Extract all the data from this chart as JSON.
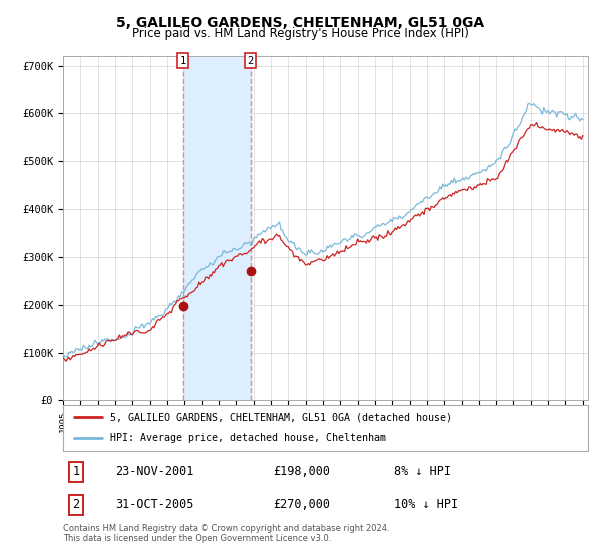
{
  "title": "5, GALILEO GARDENS, CHELTENHAM, GL51 0GA",
  "subtitle": "Price paid vs. HM Land Registry's House Price Index (HPI)",
  "title_fontsize": 10,
  "subtitle_fontsize": 8.5,
  "ylim": [
    0,
    720000
  ],
  "yticks": [
    0,
    100000,
    200000,
    300000,
    400000,
    500000,
    600000,
    700000
  ],
  "ytick_labels": [
    "£0",
    "£100K",
    "£200K",
    "£300K",
    "£400K",
    "£500K",
    "£600K",
    "£700K"
  ],
  "hpi_color": "#7ab8d9",
  "price_color": "#cc2222",
  "marker_color": "#aa1111",
  "vline_color": "#e08080",
  "vspan_color": "#ddeeff",
  "grid_color": "#cccccc",
  "background_color": "#ffffff",
  "purchase1_year": 2001.9,
  "purchase1_price": 198000,
  "purchase2_year": 2005.83,
  "purchase2_price": 270000,
  "legend1": "5, GALILEO GARDENS, CHELTENHAM, GL51 0GA (detached house)",
  "legend2": "HPI: Average price, detached house, Cheltenham",
  "footer": "Contains HM Land Registry data © Crown copyright and database right 2024.\nThis data is licensed under the Open Government Licence v3.0.",
  "table_rows": [
    {
      "num": "1",
      "date": "23-NOV-2001",
      "price": "£198,000",
      "hpi": "8% ↓ HPI"
    },
    {
      "num": "2",
      "date": "31-OCT-2005",
      "price": "£270,000",
      "hpi": "10% ↓ HPI"
    }
  ]
}
